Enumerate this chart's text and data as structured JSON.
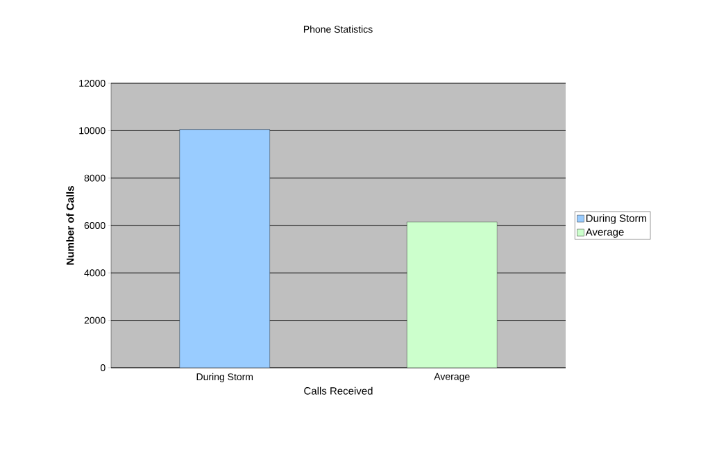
{
  "chart_data": {
    "type": "bar",
    "title": "Phone Statistics",
    "xlabel": "Calls Received",
    "ylabel": "Number of Calls",
    "categories": [
      "During Storm",
      "Average"
    ],
    "series": [
      {
        "name": "During Storm",
        "color": "#99ccff",
        "values": [
          10050,
          null
        ]
      },
      {
        "name": "Average",
        "color": "#ccffcc",
        "values": [
          null,
          6150
        ]
      }
    ],
    "ylim": [
      0,
      12000
    ],
    "yticks": [
      0,
      2000,
      4000,
      6000,
      8000,
      10000,
      12000
    ],
    "grid": "y",
    "legend": "right"
  }
}
